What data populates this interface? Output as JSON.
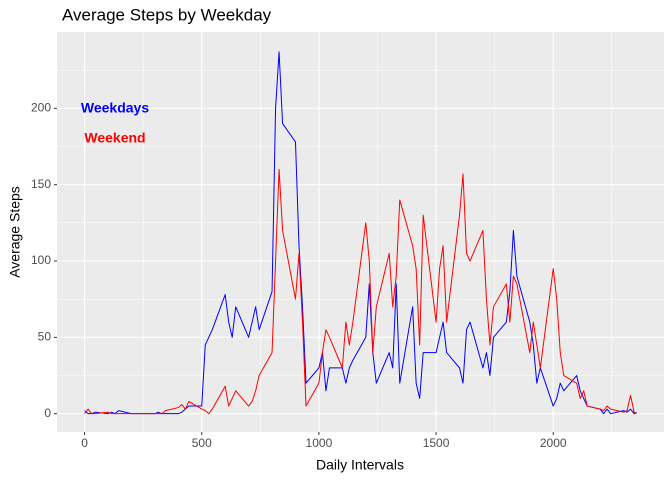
{
  "chart_data": {
    "type": "line",
    "title": "Average Steps by Weekday",
    "x_label": "Daily Intervals",
    "y_label": "Average Steps",
    "x": [
      0,
      15,
      30,
      45,
      100,
      115,
      130,
      145,
      200,
      215,
      230,
      245,
      300,
      315,
      330,
      345,
      400,
      415,
      430,
      445,
      500,
      515,
      530,
      545,
      600,
      615,
      630,
      645,
      700,
      715,
      730,
      745,
      800,
      815,
      830,
      845,
      900,
      915,
      930,
      945,
      1000,
      1015,
      1030,
      1045,
      1100,
      1115,
      1130,
      1145,
      1200,
      1215,
      1230,
      1245,
      1300,
      1315,
      1330,
      1345,
      1400,
      1415,
      1430,
      1445,
      1500,
      1515,
      1530,
      1545,
      1600,
      1615,
      1630,
      1645,
      1700,
      1715,
      1730,
      1745,
      1800,
      1815,
      1830,
      1845,
      1900,
      1915,
      1930,
      1945,
      2000,
      2015,
      2030,
      2045,
      2100,
      2115,
      2130,
      2145,
      2200,
      2215,
      2230,
      2245,
      2300,
      2315,
      2330,
      2345,
      2355
    ],
    "series": [
      {
        "name": "Weekdays",
        "color": "#0000ff",
        "values": [
          2,
          0,
          0,
          1,
          0,
          1,
          0,
          2,
          0,
          0,
          0,
          0,
          0,
          1,
          0,
          0,
          0,
          1,
          3,
          5,
          5,
          45,
          50,
          55,
          78,
          60,
          50,
          70,
          50,
          60,
          70,
          55,
          80,
          200,
          237,
          190,
          178,
          110,
          70,
          20,
          30,
          40,
          15,
          30,
          30,
          20,
          30,
          35,
          50,
          85,
          40,
          20,
          40,
          30,
          85,
          20,
          70,
          20,
          10,
          40,
          40,
          50,
          60,
          40,
          30,
          20,
          55,
          60,
          30,
          40,
          25,
          50,
          60,
          80,
          120,
          90,
          60,
          45,
          20,
          30,
          5,
          10,
          20,
          15,
          25,
          15,
          10,
          5,
          3,
          0,
          3,
          0,
          2,
          1,
          3,
          0,
          1
        ]
      },
      {
        "name": "Weekend",
        "color": "#ff0000",
        "values": [
          0,
          3,
          0,
          0,
          1,
          0,
          0,
          0,
          0,
          0,
          0,
          0,
          0,
          0,
          0,
          2,
          4,
          6,
          3,
          8,
          3,
          2,
          0,
          3,
          18,
          5,
          10,
          15,
          5,
          8,
          15,
          25,
          40,
          100,
          160,
          120,
          75,
          105,
          60,
          5,
          20,
          40,
          55,
          50,
          30,
          60,
          45,
          60,
          125,
          100,
          40,
          70,
          105,
          70,
          90,
          140,
          110,
          95,
          45,
          130,
          60,
          95,
          110,
          60,
          130,
          157,
          105,
          100,
          120,
          75,
          45,
          70,
          85,
          60,
          90,
          85,
          40,
          60,
          45,
          30,
          95,
          75,
          40,
          25,
          20,
          10,
          15,
          5,
          3,
          2,
          5,
          3,
          1,
          2,
          12,
          1,
          0
        ]
      }
    ],
    "xlim": [
      -117.75,
      2472.75
    ],
    "ylim": [
      -12,
      250
    ],
    "xticks": [
      0,
      500,
      1000,
      1500,
      2000
    ],
    "yticks": [
      0,
      50,
      100,
      150,
      200
    ],
    "grid": true,
    "legend": "top-left"
  }
}
